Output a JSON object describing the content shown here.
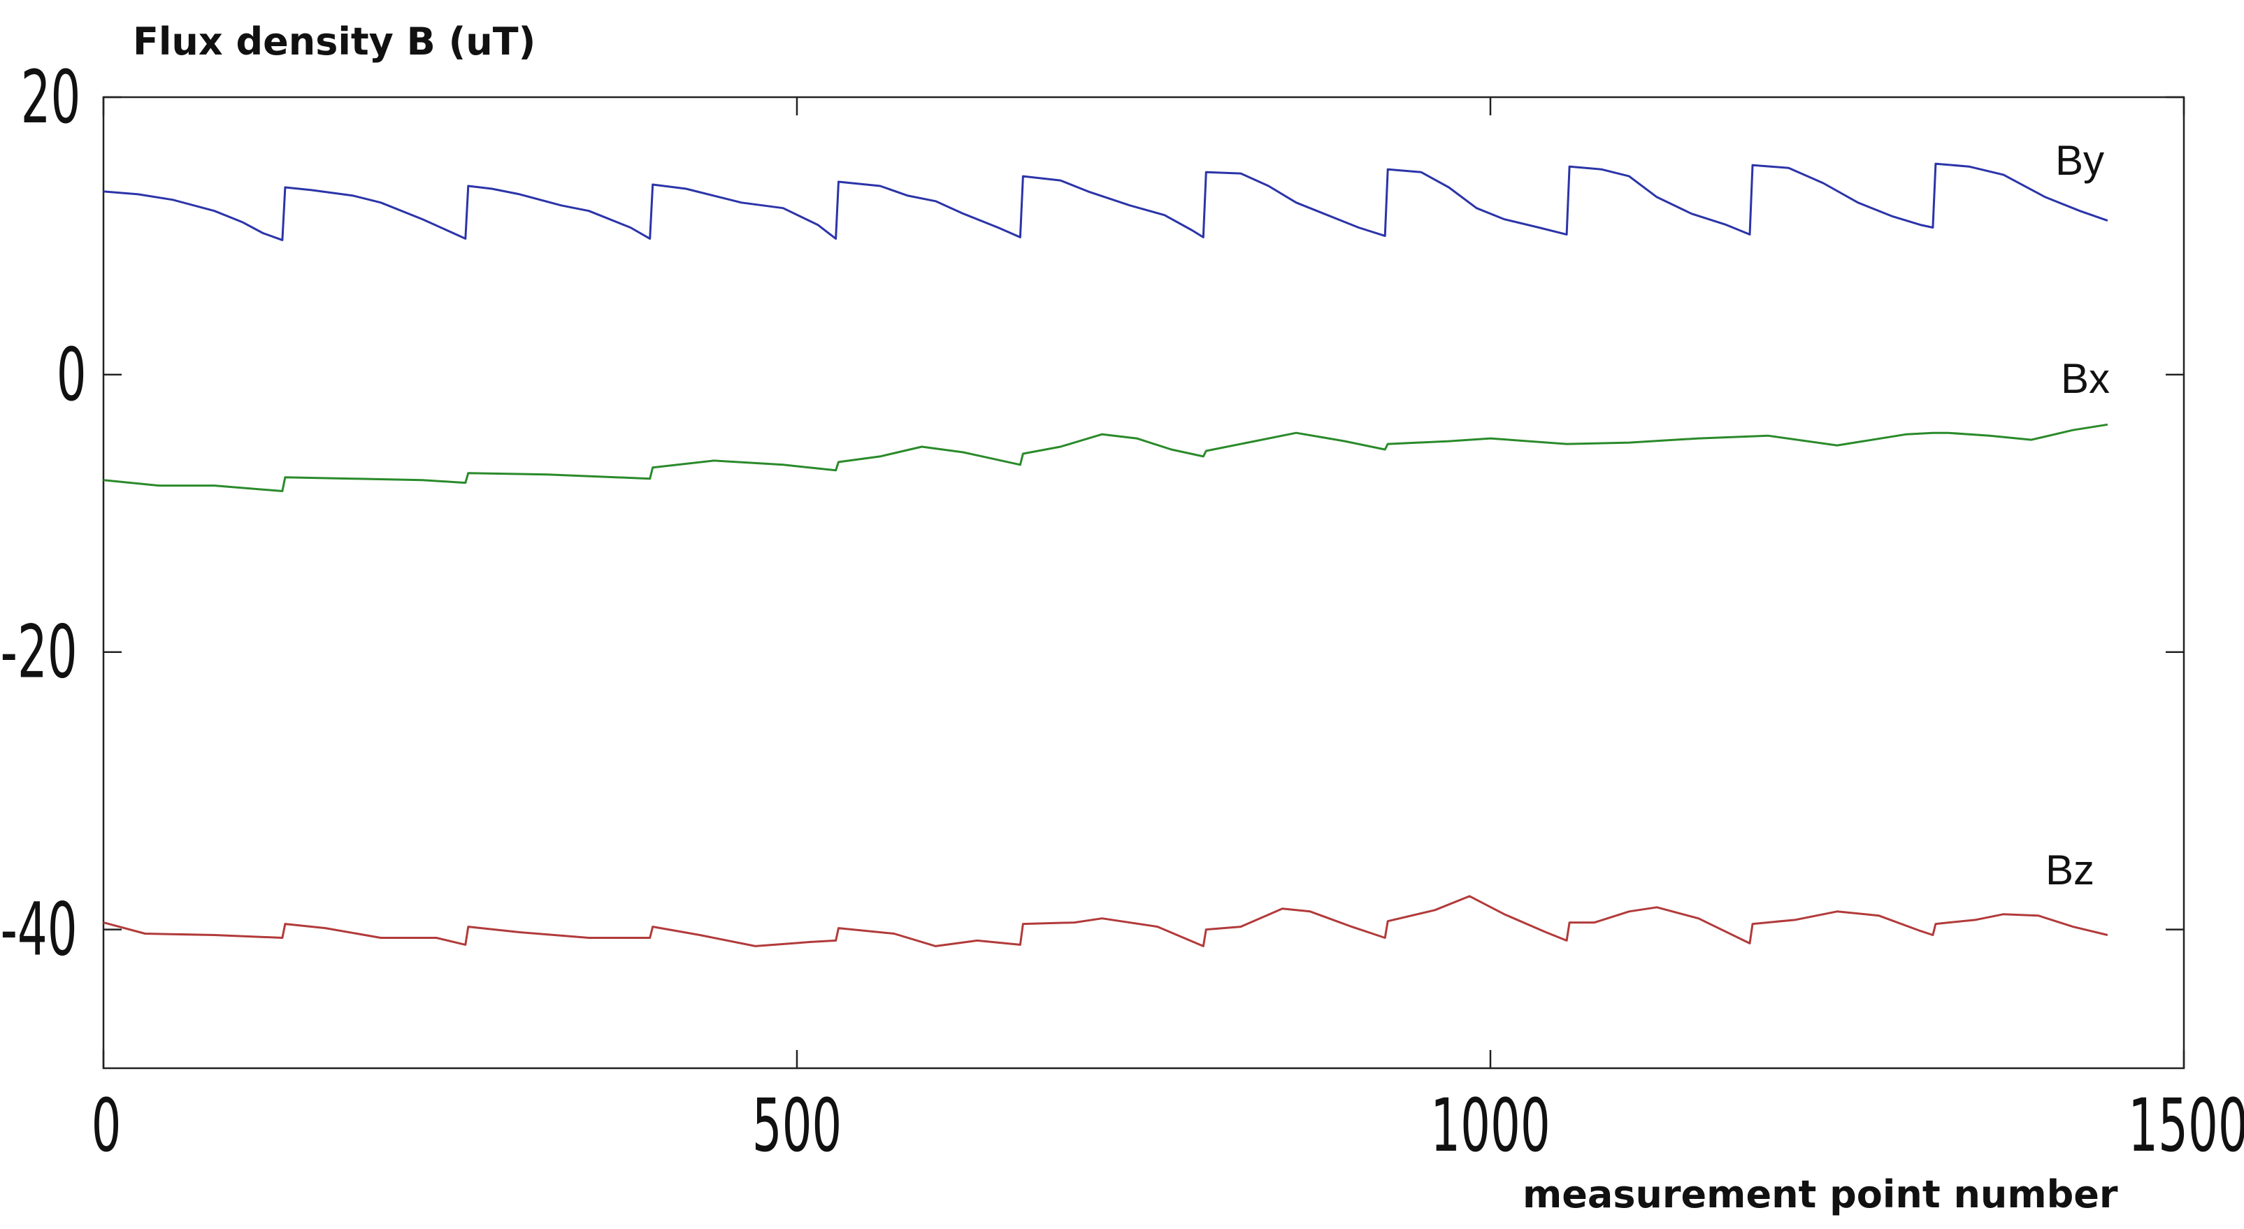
{
  "chart_data": {
    "type": "line",
    "title": "",
    "ylabel": "Flux density B (uT)",
    "xlabel": "measurement point number",
    "xlim": [
      0,
      1500
    ],
    "ylim": [
      -50,
      20
    ],
    "xticks": [
      0,
      500,
      1000,
      1500
    ],
    "yticks": [
      20,
      0,
      -20,
      -40
    ],
    "grid": false,
    "series": [
      {
        "name": "By",
        "color": "#2b34a8",
        "points": [
          [
            0,
            13.2
          ],
          [
            25,
            13.0
          ],
          [
            50,
            12.6
          ],
          [
            80,
            11.8
          ],
          [
            100,
            11.0
          ],
          [
            115,
            10.2
          ],
          [
            129,
            9.7
          ],
          [
            131,
            13.5
          ],
          [
            150,
            13.3
          ],
          [
            180,
            12.9
          ],
          [
            200,
            12.4
          ],
          [
            230,
            11.2
          ],
          [
            250,
            10.3
          ],
          [
            261,
            9.8
          ],
          [
            263,
            13.6
          ],
          [
            280,
            13.4
          ],
          [
            300,
            13.0
          ],
          [
            330,
            12.2
          ],
          [
            350,
            11.8
          ],
          [
            380,
            10.6
          ],
          [
            394,
            9.8
          ],
          [
            396,
            13.7
          ],
          [
            420,
            13.4
          ],
          [
            440,
            12.9
          ],
          [
            460,
            12.4
          ],
          [
            490,
            12.0
          ],
          [
            515,
            10.8
          ],
          [
            528,
            9.8
          ],
          [
            530,
            13.9
          ],
          [
            560,
            13.6
          ],
          [
            580,
            12.9
          ],
          [
            600,
            12.5
          ],
          [
            620,
            11.6
          ],
          [
            645,
            10.6
          ],
          [
            661,
            9.9
          ],
          [
            663,
            14.3
          ],
          [
            690,
            14.0
          ],
          [
            710,
            13.2
          ],
          [
            740,
            12.2
          ],
          [
            765,
            11.5
          ],
          [
            785,
            10.4
          ],
          [
            793,
            9.9
          ],
          [
            795,
            14.6
          ],
          [
            820,
            14.5
          ],
          [
            840,
            13.6
          ],
          [
            860,
            12.4
          ],
          [
            880,
            11.6
          ],
          [
            905,
            10.6
          ],
          [
            924,
            10.0
          ],
          [
            926,
            14.8
          ],
          [
            950,
            14.6
          ],
          [
            970,
            13.5
          ],
          [
            990,
            12.0
          ],
          [
            1010,
            11.2
          ],
          [
            1035,
            10.6
          ],
          [
            1055,
            10.1
          ],
          [
            1057,
            15.0
          ],
          [
            1080,
            14.8
          ],
          [
            1100,
            14.3
          ],
          [
            1120,
            12.8
          ],
          [
            1145,
            11.6
          ],
          [
            1170,
            10.8
          ],
          [
            1187,
            10.1
          ],
          [
            1189,
            15.1
          ],
          [
            1215,
            14.9
          ],
          [
            1240,
            13.8
          ],
          [
            1265,
            12.4
          ],
          [
            1290,
            11.4
          ],
          [
            1310,
            10.8
          ],
          [
            1319,
            10.6
          ],
          [
            1321,
            15.2
          ],
          [
            1345,
            15.0
          ],
          [
            1370,
            14.4
          ],
          [
            1400,
            12.8
          ],
          [
            1425,
            11.8
          ],
          [
            1445,
            11.1
          ]
        ]
      },
      {
        "name": "Bx",
        "color": "#2a8a2a",
        "points": [
          [
            0,
            -7.6
          ],
          [
            40,
            -8.0
          ],
          [
            80,
            -8.0
          ],
          [
            129,
            -8.4
          ],
          [
            131,
            -7.4
          ],
          [
            180,
            -7.5
          ],
          [
            230,
            -7.6
          ],
          [
            261,
            -7.8
          ],
          [
            263,
            -7.1
          ],
          [
            320,
            -7.2
          ],
          [
            394,
            -7.5
          ],
          [
            396,
            -6.7
          ],
          [
            440,
            -6.2
          ],
          [
            490,
            -6.5
          ],
          [
            528,
            -6.9
          ],
          [
            530,
            -6.3
          ],
          [
            560,
            -5.9
          ],
          [
            590,
            -5.2
          ],
          [
            620,
            -5.6
          ],
          [
            661,
            -6.5
          ],
          [
            663,
            -5.7
          ],
          [
            690,
            -5.2
          ],
          [
            720,
            -4.3
          ],
          [
            745,
            -4.6
          ],
          [
            770,
            -5.4
          ],
          [
            793,
            -5.9
          ],
          [
            795,
            -5.5
          ],
          [
            830,
            -4.8
          ],
          [
            860,
            -4.2
          ],
          [
            895,
            -4.8
          ],
          [
            924,
            -5.4
          ],
          [
            926,
            -5.0
          ],
          [
            970,
            -4.8
          ],
          [
            1000,
            -4.6
          ],
          [
            1055,
            -5.0
          ],
          [
            1100,
            -4.9
          ],
          [
            1150,
            -4.6
          ],
          [
            1200,
            -4.4
          ],
          [
            1250,
            -5.1
          ],
          [
            1300,
            -4.3
          ],
          [
            1319,
            -4.2
          ],
          [
            1330,
            -4.2
          ],
          [
            1360,
            -4.4
          ],
          [
            1390,
            -4.7
          ],
          [
            1420,
            -4.0
          ],
          [
            1445,
            -3.6
          ]
        ]
      },
      {
        "name": "Bz",
        "color": "#b23a3a",
        "points": [
          [
            0,
            -39.5
          ],
          [
            30,
            -40.3
          ],
          [
            80,
            -40.4
          ],
          [
            129,
            -40.6
          ],
          [
            131,
            -39.6
          ],
          [
            160,
            -39.9
          ],
          [
            200,
            -40.6
          ],
          [
            240,
            -40.6
          ],
          [
            261,
            -41.1
          ],
          [
            263,
            -39.8
          ],
          [
            300,
            -40.2
          ],
          [
            350,
            -40.6
          ],
          [
            394,
            -40.6
          ],
          [
            396,
            -39.8
          ],
          [
            430,
            -40.4
          ],
          [
            470,
            -41.2
          ],
          [
            510,
            -40.9
          ],
          [
            528,
            -40.8
          ],
          [
            530,
            -39.9
          ],
          [
            570,
            -40.3
          ],
          [
            600,
            -41.2
          ],
          [
            630,
            -40.8
          ],
          [
            661,
            -41.1
          ],
          [
            663,
            -39.6
          ],
          [
            700,
            -39.5
          ],
          [
            720,
            -39.2
          ],
          [
            760,
            -39.8
          ],
          [
            793,
            -41.2
          ],
          [
            795,
            -40.0
          ],
          [
            820,
            -39.8
          ],
          [
            850,
            -38.5
          ],
          [
            870,
            -38.7
          ],
          [
            900,
            -39.8
          ],
          [
            924,
            -40.6
          ],
          [
            926,
            -39.4
          ],
          [
            960,
            -38.6
          ],
          [
            985,
            -37.6
          ],
          [
            1010,
            -38.9
          ],
          [
            1040,
            -40.2
          ],
          [
            1055,
            -40.8
          ],
          [
            1057,
            -39.5
          ],
          [
            1075,
            -39.5
          ],
          [
            1100,
            -38.7
          ],
          [
            1120,
            -38.4
          ],
          [
            1150,
            -39.2
          ],
          [
            1187,
            -41.0
          ],
          [
            1189,
            -39.6
          ],
          [
            1220,
            -39.3
          ],
          [
            1250,
            -38.7
          ],
          [
            1280,
            -39.0
          ],
          [
            1310,
            -40.1
          ],
          [
            1319,
            -40.4
          ],
          [
            1321,
            -39.6
          ],
          [
            1350,
            -39.3
          ],
          [
            1370,
            -38.9
          ],
          [
            1395,
            -39.0
          ],
          [
            1420,
            -39.8
          ],
          [
            1445,
            -40.4
          ]
        ]
      }
    ]
  }
}
